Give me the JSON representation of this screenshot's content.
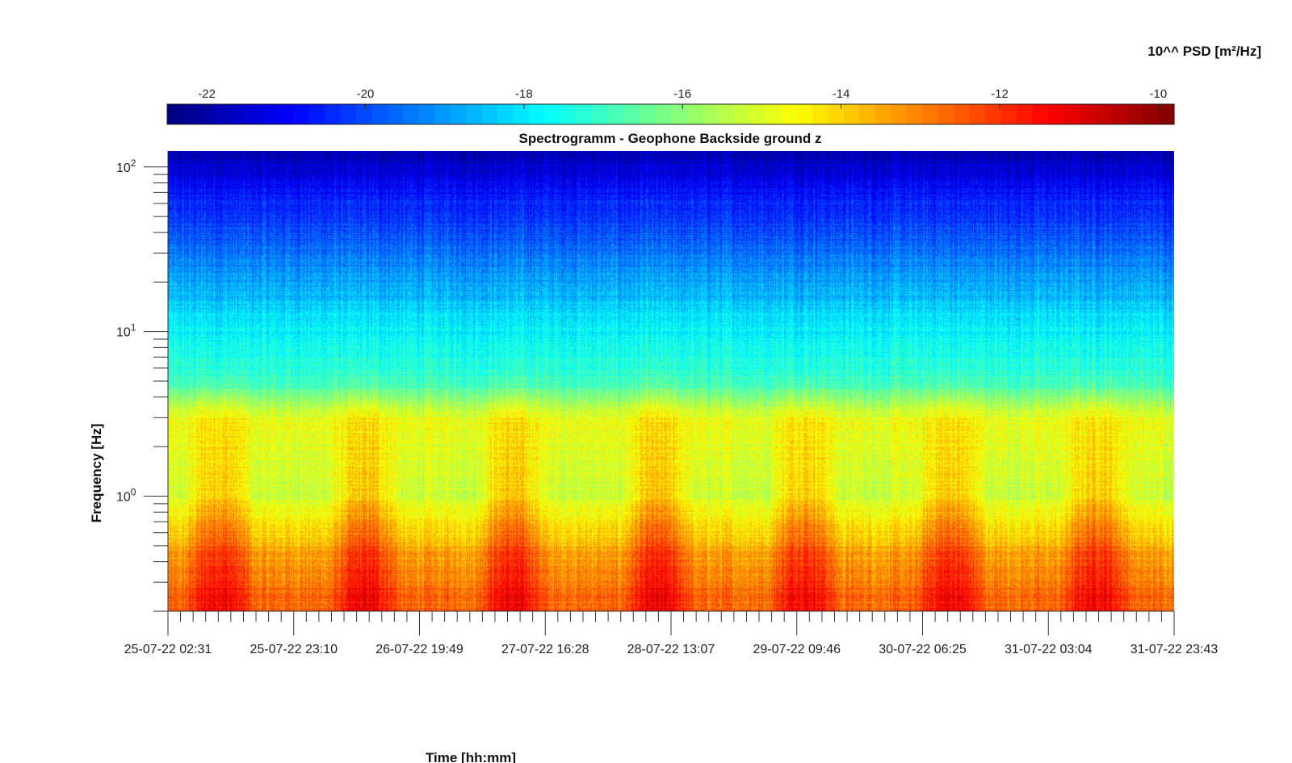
{
  "chart_data": {
    "type": "heatmap",
    "title": "Spectrogramm - Geophone Backside ground z",
    "xlabel": "Time [hh:mm]",
    "ylabel": "Frequency [Hz]",
    "colorbar": {
      "title": "10^^ PSD [m²/Hz]",
      "range": [
        -22.5,
        -9.8
      ],
      "ticks": [
        -22,
        -20,
        -18,
        -16,
        -14,
        -12,
        -10
      ],
      "tick_labels": [
        "-22",
        "-20",
        "-18",
        "-16",
        "-14",
        "-12",
        "-10"
      ],
      "colormap": "jet",
      "placement": "top"
    },
    "x_ticks": [
      "25-07-22 02:31",
      "25-07-22 23:10",
      "26-07-22 19:49",
      "27-07-22 16:28",
      "28-07-22 13:07",
      "29-07-22 09:46",
      "30-07-22 06:25",
      "31-07-22 03:04",
      "31-07-22 23:43"
    ],
    "x_minor_ticks_per_interval": 10,
    "y_scale": "log",
    "ylim_hz": [
      0.2,
      125
    ],
    "y_ticks": [
      1,
      10,
      100
    ],
    "y_tick_labels": [
      {
        "base": "10",
        "exp": "0"
      },
      {
        "base": "10",
        "exp": "1"
      },
      {
        "base": "10",
        "exp": "2"
      }
    ],
    "grid": false,
    "description_levels": [
      {
        "freq_hz": 120,
        "log10_psd": -21.8
      },
      {
        "freq_hz": 60,
        "log10_psd": -20.5
      },
      {
        "freq_hz": 30,
        "log10_psd": -19.5
      },
      {
        "freq_hz": 10,
        "log10_psd": -17.8
      },
      {
        "freq_hz": 5,
        "log10_psd": -17.0
      },
      {
        "freq_hz": 3,
        "log10_psd": -14.8
      },
      {
        "freq_hz": 1,
        "log10_psd": -15.2
      },
      {
        "freq_hz": 0.6,
        "log10_psd": -14.0
      },
      {
        "freq_hz": 0.25,
        "log10_psd": -13.0
      }
    ]
  }
}
